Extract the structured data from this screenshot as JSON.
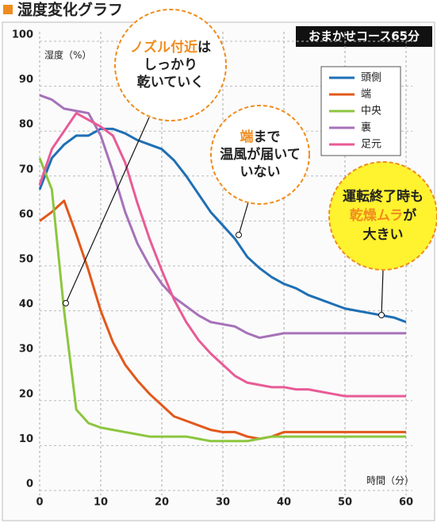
{
  "chart_data": {
    "type": "line",
    "title": "湿度変化グラフ",
    "badge": "おまかせコース65分",
    "y_label": "湿度（%）",
    "x_label": "時間（分）",
    "x": [
      0,
      2,
      4,
      6,
      8,
      10,
      12,
      14,
      16,
      18,
      20,
      22,
      24,
      26,
      28,
      30,
      32,
      34,
      36,
      38,
      40,
      42,
      44,
      46,
      48,
      50,
      52,
      54,
      56,
      58,
      60
    ],
    "series": [
      {
        "name": "頭側",
        "color": "#1f6fb5",
        "values": [
          67,
          74,
          77,
          79,
          79,
          80.5,
          80.5,
          79.5,
          78,
          77,
          76,
          73.5,
          70,
          66,
          62,
          59,
          56,
          52,
          49.5,
          47.5,
          46,
          45,
          43.5,
          42.5,
          41.5,
          40.5,
          40,
          39.5,
          39,
          38.5,
          37.5
        ]
      },
      {
        "name": "端",
        "color": "#e2581b",
        "values": [
          60,
          62,
          64.5,
          57,
          49,
          40,
          33,
          28,
          24.5,
          21.5,
          19,
          16.5,
          15.5,
          14.5,
          13.5,
          13,
          13,
          12,
          11.5,
          12,
          13,
          13,
          13,
          13,
          13,
          13,
          13,
          13,
          13,
          13,
          13
        ]
      },
      {
        "name": "中央",
        "color": "#8cc63f",
        "values": [
          74,
          67,
          40,
          18,
          15,
          14,
          13.5,
          13,
          12.5,
          12,
          12,
          12,
          12,
          11.5,
          11,
          11,
          11,
          11,
          11.5,
          12,
          12,
          12,
          12,
          12,
          12,
          12,
          12,
          12,
          12,
          12,
          12
        ]
      },
      {
        "name": "裏",
        "color": "#a672b8",
        "values": [
          88,
          87,
          85,
          84.5,
          84,
          79,
          71,
          62,
          55,
          50,
          46,
          43,
          41,
          39,
          37.5,
          37,
          36.5,
          35,
          34,
          34.5,
          35,
          35,
          35,
          35,
          35,
          35,
          35,
          35,
          35,
          35,
          35
        ]
      },
      {
        "name": "足元",
        "color": "#e85b96",
        "values": [
          68,
          76,
          80,
          84,
          82.5,
          81,
          79,
          73,
          64,
          56,
          49,
          42.5,
          37.5,
          33.5,
          30.5,
          28,
          25.5,
          24,
          23.5,
          23,
          23,
          22.5,
          22.5,
          22,
          21.5,
          21,
          21,
          21,
          21,
          21,
          21
        ]
      }
    ],
    "xlim": [
      0,
      60
    ],
    "xticks": [
      0,
      10,
      20,
      30,
      40,
      50,
      60
    ],
    "ylim": [
      0,
      100
    ],
    "yticks": [
      0,
      10,
      20,
      30,
      40,
      50,
      60,
      70,
      80,
      90,
      100
    ],
    "grid": true,
    "accent_color": "#f08c1e",
    "annotations": [
      {
        "lines": [
          [
            {
              "text": "ノズル付近",
              "accent": true
            },
            {
              "text": "は"
            }
          ],
          [
            {
              "text": "しっかり"
            }
          ],
          [
            {
              "text": "乾いていく"
            }
          ]
        ]
      },
      {
        "lines": [
          [
            {
              "text": "端",
              "accent": true
            },
            {
              "text": "まで"
            }
          ],
          [
            {
              "text": "温風が届いて"
            }
          ],
          [
            {
              "text": "いない"
            }
          ]
        ]
      },
      {
        "lines": [
          [
            {
              "text": "運転終了時も"
            }
          ],
          [
            {
              "text": "乾燥ムラ",
              "accent": true
            },
            {
              "text": "が"
            }
          ],
          [
            {
              "text": "大きい"
            }
          ]
        ]
      }
    ]
  }
}
